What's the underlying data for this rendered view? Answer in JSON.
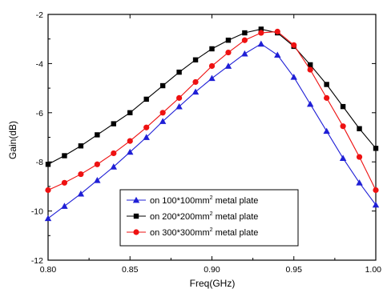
{
  "chart_data": {
    "type": "line",
    "xlabel": "Freq(GHz)",
    "ylabel": "Gain(dB)",
    "xlim": [
      0.8,
      1.0
    ],
    "ylim": [
      -12,
      -2
    ],
    "x_ticks": [
      0.8,
      0.85,
      0.9,
      0.95,
      1.0
    ],
    "x_tick_labels": [
      "0.80",
      "0.85",
      "0.90",
      "0.95",
      "1.00"
    ],
    "y_ticks": [
      -12,
      -10,
      -8,
      -6,
      -4,
      -2
    ],
    "y_tick_labels": [
      "-12",
      "-10",
      "-8",
      "-6",
      "-4",
      "-2"
    ],
    "grid": false,
    "legend_placement": "bottom-center",
    "x": [
      0.8,
      0.81,
      0.82,
      0.83,
      0.84,
      0.85,
      0.86,
      0.87,
      0.88,
      0.89,
      0.9,
      0.91,
      0.92,
      0.93,
      0.94,
      0.95,
      0.96,
      0.97,
      0.98,
      0.99,
      1.0
    ],
    "series": [
      {
        "legend_main": "on 100*100mm",
        "legend_sup": "2",
        "legend_tail": " metal plate",
        "marker": "triangle",
        "color": "#1f1fd6",
        "values": [
          -10.3,
          -9.8,
          -9.3,
          -8.75,
          -8.2,
          -7.6,
          -7.0,
          -6.35,
          -5.75,
          -5.15,
          -4.6,
          -4.1,
          -3.6,
          -3.2,
          -3.65,
          -4.55,
          -5.65,
          -6.75,
          -7.85,
          -8.85,
          -9.75
        ]
      },
      {
        "legend_main": "on 200*200mm",
        "legend_sup": "2",
        "legend_tail": " metal plate",
        "marker": "square",
        "color": "#000000",
        "values": [
          -8.1,
          -7.75,
          -7.35,
          -6.9,
          -6.45,
          -6.0,
          -5.45,
          -4.9,
          -4.35,
          -3.85,
          -3.4,
          -3.05,
          -2.75,
          -2.6,
          -2.75,
          -3.3,
          -4.05,
          -4.85,
          -5.75,
          -6.65,
          -7.45
        ]
      },
      {
        "legend_main": "on 300*300mm",
        "legend_sup": "2",
        "legend_tail": " metal plate",
        "marker": "circle",
        "color": "#ee1111",
        "values": [
          -9.15,
          -8.85,
          -8.5,
          -8.1,
          -7.65,
          -7.15,
          -6.6,
          -6.0,
          -5.4,
          -4.75,
          -4.1,
          -3.55,
          -3.05,
          -2.75,
          -2.7,
          -3.25,
          -4.25,
          -5.4,
          -6.55,
          -7.8,
          -9.15
        ]
      }
    ]
  }
}
